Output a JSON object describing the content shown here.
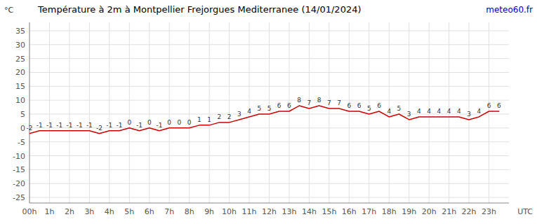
{
  "chart_data": {
    "type": "line",
    "title": "Température à 2m à Montpellier Frejorgues Mediterranee (14/01/2024)",
    "ylabel": "°C",
    "xlabel": "UTC",
    "annotations": [
      "meteo60.fr"
    ],
    "x": [
      0,
      0.5,
      1,
      1.5,
      2,
      2.5,
      3,
      3.5,
      4,
      4.5,
      5,
      5.5,
      6,
      6.5,
      7,
      7.5,
      8,
      8.5,
      9,
      9.5,
      10,
      10.5,
      11,
      11.5,
      12,
      12.5,
      13,
      13.5,
      14,
      14.5,
      15,
      15.5,
      16,
      16.5,
      17,
      17.5,
      18,
      18.5,
      19,
      19.5,
      20,
      20.5,
      21,
      21.5,
      22,
      22.5,
      23,
      23.5
    ],
    "values": [
      -2,
      -1,
      -1,
      -1,
      -1,
      -1,
      -1,
      -2,
      -1,
      -1,
      0,
      -1,
      0,
      -1,
      0,
      0,
      0,
      1,
      1,
      2,
      2,
      3,
      4,
      5,
      5,
      6,
      6,
      8,
      7,
      8,
      7,
      7,
      6,
      6,
      5,
      6,
      4,
      5,
      3,
      4,
      4,
      4,
      4,
      4,
      3,
      4,
      6,
      6
    ],
    "color": "#cc0000",
    "data_labels": true,
    "xlim": [
      0,
      24
    ],
    "ylim": [
      -27,
      38
    ],
    "xticks": [
      {
        "value": 0,
        "label": "00h"
      },
      {
        "value": 1,
        "label": "1h"
      },
      {
        "value": 2,
        "label": "2h"
      },
      {
        "value": 3,
        "label": "3h"
      },
      {
        "value": 4,
        "label": "4h"
      },
      {
        "value": 5,
        "label": "5h"
      },
      {
        "value": 6,
        "label": "6h"
      },
      {
        "value": 7,
        "label": "7h"
      },
      {
        "value": 8,
        "label": "8h"
      },
      {
        "value": 9,
        "label": "9h"
      },
      {
        "value": 10,
        "label": "10h"
      },
      {
        "value": 11,
        "label": "11h"
      },
      {
        "value": 12,
        "label": "12h"
      },
      {
        "value": 13,
        "label": "13h"
      },
      {
        "value": 14,
        "label": "14h"
      },
      {
        "value": 15,
        "label": "15h"
      },
      {
        "value": 16,
        "label": "16h"
      },
      {
        "value": 17,
        "label": "17h"
      },
      {
        "value": 18,
        "label": "18h"
      },
      {
        "value": 19,
        "label": "19h"
      },
      {
        "value": 20,
        "label": "20h"
      },
      {
        "value": 21,
        "label": "21h"
      },
      {
        "value": 22,
        "label": "22h"
      },
      {
        "value": 23,
        "label": "23h"
      }
    ],
    "yticks": [
      -25,
      -20,
      -15,
      -10,
      -5,
      0,
      5,
      10,
      15,
      20,
      25,
      30,
      35
    ],
    "grid": true
  }
}
